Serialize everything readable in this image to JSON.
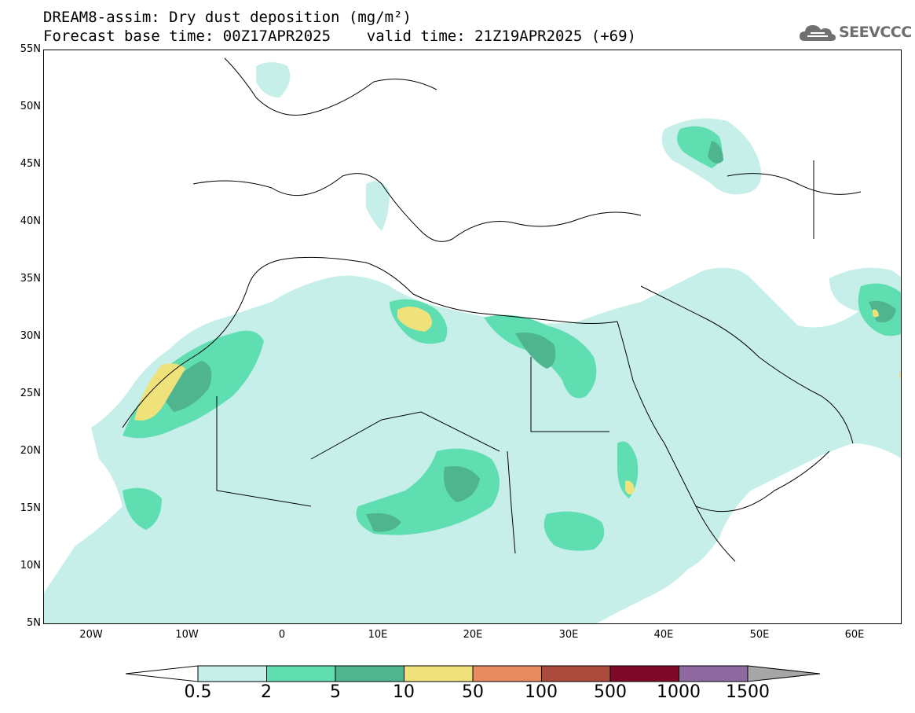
{
  "header": {
    "title_line1": "DREAM8-assim: Dry dust deposition (mg/m²)",
    "title_line2": "Forecast base time: 00Z17APR2025    valid time: 21Z19APR2025 (+69)"
  },
  "logo": {
    "text": "SEEVCCC",
    "icon": "cloud-logo-icon"
  },
  "map": {
    "lat_labels": [
      "55N",
      "50N",
      "45N",
      "40N",
      "35N",
      "30N",
      "25N",
      "20N",
      "15N",
      "10N",
      "5N"
    ],
    "lon_labels": [
      "20W",
      "10W",
      "0",
      "10E",
      "20E",
      "30E",
      "40E",
      "50E",
      "60E"
    ],
    "lat_range": [
      5,
      55
    ],
    "lon_range": [
      -25,
      65
    ],
    "colors": {
      "c1": "#c5efe8",
      "c2": "#5fdeb2",
      "c3": "#4fb58f",
      "c4": "#f0e27a"
    }
  },
  "legend": {
    "labels": [
      "0.5",
      "2",
      "5",
      "10",
      "50",
      "100",
      "500",
      "1000",
      "1500"
    ],
    "colors": [
      "#c5efe8",
      "#5fdeb2",
      "#4fb58f",
      "#f0e27a",
      "#e88a60",
      "#ac4b3d",
      "#7d0a2a",
      "#8e6aa0"
    ],
    "min_arrow_color": "#ffffff",
    "max_arrow_color": "#a6a6a6"
  }
}
